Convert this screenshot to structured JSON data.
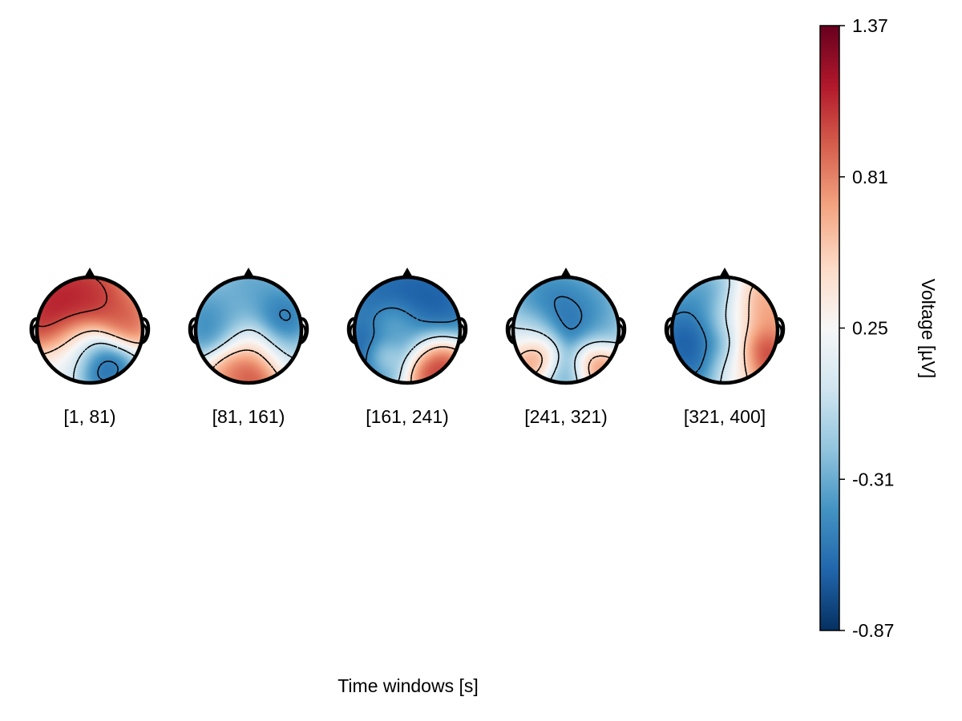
{
  "chart_data": {
    "type": "heatmap",
    "subtype": "topoplot-series",
    "xlabel": "Time windows [s]",
    "windows": [
      {
        "label": "[1, 81)",
        "blobs": [
          {
            "x": -0.45,
            "y": -0.45,
            "v": 1.25,
            "r": 0.45
          },
          {
            "x": -0.05,
            "y": -0.55,
            "v": 1.1,
            "r": 0.4
          },
          {
            "x": 0.55,
            "y": -0.15,
            "v": 1.0,
            "r": 0.3
          },
          {
            "x": -0.55,
            "y": 0.05,
            "v": 1.15,
            "r": 0.35
          },
          {
            "x": 0.2,
            "y": 0.55,
            "v": -0.8,
            "r": 0.32
          },
          {
            "x": -0.2,
            "y": 0.25,
            "v": -0.2,
            "r": 0.3
          },
          {
            "x": -0.55,
            "y": 0.6,
            "v": 0.1,
            "r": 0.3
          }
        ]
      },
      {
        "label": "[81, 161)",
        "blobs": [
          {
            "x": -0.55,
            "y": -0.1,
            "v": -0.65,
            "r": 0.35
          },
          {
            "x": 0.55,
            "y": -0.2,
            "v": -0.7,
            "r": 0.3
          },
          {
            "x": 0.1,
            "y": -0.6,
            "v": -0.45,
            "r": 0.4
          },
          {
            "x": -0.2,
            "y": -0.2,
            "v": -0.1,
            "r": 0.35
          },
          {
            "x": 0.15,
            "y": 0.65,
            "v": 1.3,
            "r": 0.3
          },
          {
            "x": -0.2,
            "y": 0.65,
            "v": 0.85,
            "r": 0.3
          },
          {
            "x": 0.45,
            "y": 0.4,
            "v": -0.25,
            "r": 0.3
          },
          {
            "x": 0.0,
            "y": 0.2,
            "v": 0.45,
            "r": 0.25
          }
        ]
      },
      {
        "label": "[161, 241)",
        "blobs": [
          {
            "x": -0.3,
            "y": -0.5,
            "v": -0.75,
            "r": 0.5
          },
          {
            "x": 0.4,
            "y": -0.45,
            "v": -0.8,
            "r": 0.45
          },
          {
            "x": -0.6,
            "y": 0.35,
            "v": -0.8,
            "r": 0.35
          },
          {
            "x": 0.45,
            "y": 0.55,
            "v": 1.3,
            "r": 0.3
          },
          {
            "x": -0.4,
            "y": 0.45,
            "v": 0.3,
            "r": 0.2
          },
          {
            "x": 0.0,
            "y": 0.1,
            "v": -0.3,
            "r": 0.35
          },
          {
            "x": -0.25,
            "y": -0.1,
            "v": -0.05,
            "r": 0.25
          }
        ]
      },
      {
        "label": "[241, 321)",
        "blobs": [
          {
            "x": 0.05,
            "y": -0.15,
            "v": -0.85,
            "r": 0.35
          },
          {
            "x": -0.3,
            "y": -0.5,
            "v": -0.55,
            "r": 0.4
          },
          {
            "x": 0.4,
            "y": -0.5,
            "v": -0.4,
            "r": 0.35
          },
          {
            "x": -0.45,
            "y": 0.45,
            "v": 1.1,
            "r": 0.25
          },
          {
            "x": 0.5,
            "y": 0.55,
            "v": 1.15,
            "r": 0.25
          },
          {
            "x": 0.0,
            "y": 0.6,
            "v": -0.5,
            "r": 0.3
          },
          {
            "x": -0.5,
            "y": 0.05,
            "v": 0.1,
            "r": 0.3
          },
          {
            "x": 0.55,
            "y": 0.1,
            "v": -0.3,
            "r": 0.3
          }
        ]
      },
      {
        "label": "[321, 400]",
        "blobs": [
          {
            "x": -0.5,
            "y": 0.2,
            "v": -0.85,
            "r": 0.45
          },
          {
            "x": -0.3,
            "y": -0.45,
            "v": -0.45,
            "r": 0.35
          },
          {
            "x": 0.1,
            "y": -0.2,
            "v": 0.15,
            "r": 0.3
          },
          {
            "x": 0.5,
            "y": -0.25,
            "v": 0.85,
            "r": 0.35
          },
          {
            "x": 0.55,
            "y": 0.45,
            "v": 1.25,
            "r": 0.3
          },
          {
            "x": 0.0,
            "y": 0.45,
            "v": -0.3,
            "r": 0.3
          },
          {
            "x": 0.2,
            "y": 0.7,
            "v": 0.4,
            "r": 0.25
          }
        ]
      }
    ],
    "colorbar": {
      "label": "Voltage [µV]",
      "colormap": "RdBu_r",
      "range": [
        -0.87,
        1.37
      ],
      "ticks": [
        -0.87,
        -0.31,
        0.25,
        0.81,
        1.37
      ],
      "tick_labels": [
        "-0.87",
        "-0.31",
        "0.25",
        "0.81",
        "1.37"
      ]
    },
    "contours": "dotted",
    "grid": false
  }
}
